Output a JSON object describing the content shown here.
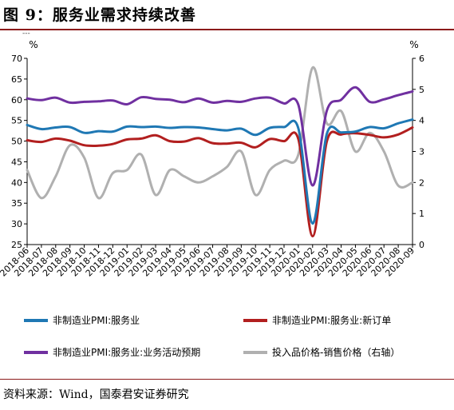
{
  "figure": {
    "title": "图 9：服务业需求持续改善",
    "tiny_mark": "---",
    "source": "资料来源：Wind，国泰君安证券研究"
  },
  "colors": {
    "services_pmi": "#1f78b4",
    "new_orders": "#b21f1f",
    "expectations": "#7030a0",
    "price_gap": "#b0b0b0",
    "title_rule": "#8b1a1a"
  },
  "chart_data": {
    "type": "line",
    "categories": [
      "2018-06",
      "2018-07",
      "2018-08",
      "2018-09",
      "2018-10",
      "2018-11",
      "2018-12",
      "2019-01",
      "2019-02",
      "2019-03",
      "2019-04",
      "2019-05",
      "2019-06",
      "2019-07",
      "2019-08",
      "2019-09",
      "2019-10",
      "2019-11",
      "2019-12",
      "2020-01",
      "2020-02",
      "2020-03",
      "2020-04",
      "2020-05",
      "2020-06",
      "2020-07",
      "2020-08",
      "2020-09"
    ],
    "left_axis": {
      "unit": "%",
      "min": 25,
      "max": 70,
      "ticks": [
        25,
        30,
        35,
        40,
        45,
        50,
        55,
        60,
        65,
        70
      ]
    },
    "right_axis": {
      "unit": "%",
      "min": 0,
      "max": 6,
      "ticks": [
        0,
        1,
        2,
        3,
        4,
        5,
        6
      ]
    },
    "grid": false,
    "legend_position": "bottom",
    "series": [
      {
        "name": "非制造业PMI:服务业",
        "axis": "left",
        "color": "#1f78b4",
        "values": [
          53.9,
          52.9,
          53.3,
          53.4,
          52.0,
          52.4,
          52.3,
          53.5,
          53.4,
          53.5,
          53.2,
          53.4,
          53.3,
          52.9,
          52.6,
          53.0,
          51.5,
          53.2,
          53.4,
          53.1,
          30.1,
          51.8,
          52.1,
          52.3,
          53.4,
          53.1,
          54.3,
          55.2
        ]
      },
      {
        "name": "非制造业PMI:服务业:新订单",
        "axis": "left",
        "color": "#b21f1f",
        "values": [
          50.2,
          49.8,
          50.6,
          50.1,
          49.0,
          48.9,
          49.3,
          50.4,
          50.6,
          51.4,
          50.0,
          49.9,
          50.7,
          49.5,
          49.4,
          49.6,
          48.5,
          50.5,
          50.0,
          50.5,
          27.0,
          50.0,
          51.6,
          51.9,
          51.5,
          50.9,
          51.6,
          53.3
        ]
      },
      {
        "name": "非制造业PMI:服务业:业务活动预期",
        "axis": "left",
        "color": "#7030a0",
        "values": [
          60.3,
          59.9,
          60.5,
          59.3,
          59.5,
          59.6,
          59.8,
          58.9,
          60.6,
          60.2,
          60.0,
          59.4,
          60.3,
          59.3,
          59.7,
          59.5,
          60.3,
          60.5,
          59.1,
          58.8,
          39.3,
          57.4,
          60.0,
          63.0,
          59.5,
          60.1,
          61.1,
          62.0
        ]
      },
      {
        "name": "投入品价格-销售价格（右轴）",
        "axis": "right",
        "color": "#b0b0b0",
        "values": [
          2.4,
          1.5,
          2.2,
          3.2,
          2.8,
          1.5,
          2.3,
          2.4,
          2.9,
          1.6,
          2.4,
          2.2,
          2.0,
          2.2,
          2.5,
          3.0,
          1.6,
          2.4,
          2.7,
          2.9,
          5.7,
          3.9,
          4.3,
          3.0,
          3.6,
          3.0,
          1.9,
          2.0
        ]
      }
    ]
  }
}
